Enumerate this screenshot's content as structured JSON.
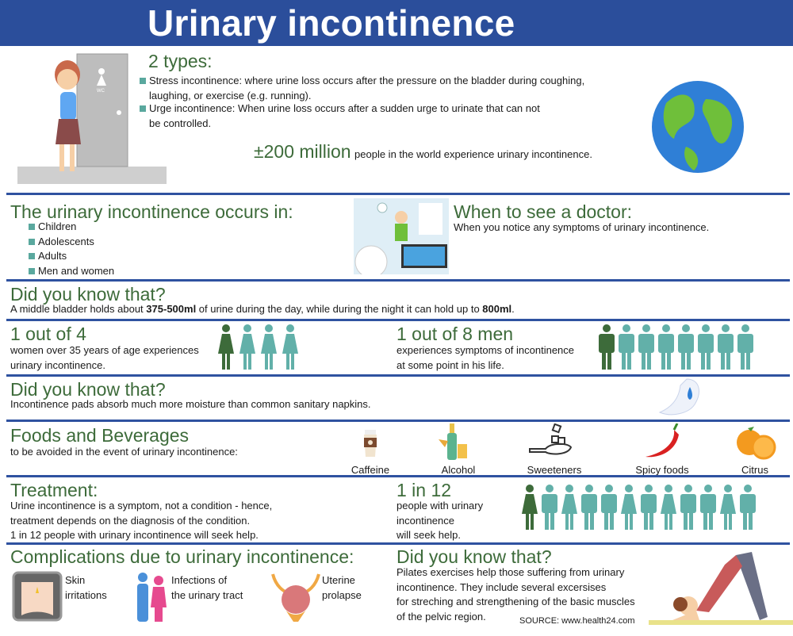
{
  "title": "Urinary incontinence",
  "types": {
    "heading": "2 types:",
    "items": [
      {
        "line1": "Stress incontinence: where urine loss occurs after the pressure on the bladder during coughing,",
        "line2": "laughing, or exercise (e.g. running)."
      },
      {
        "line1": "Urge incontinence: When urine loss occurs after a sudden urge to urinate that can not",
        "line2": "be controlled."
      }
    ],
    "stat_big": "±200 million",
    "stat_text": "people in the world experience urinary incontinence.",
    "door_sign": "WC"
  },
  "occurs": {
    "heading": "The urinary incontinence occurs in:",
    "items": [
      "Children",
      "Adolescents",
      "Adults",
      "Men and women"
    ]
  },
  "doctor": {
    "heading": "When to see a doctor:",
    "text": "When you notice any symptoms of urinary incontinence."
  },
  "dyk1": {
    "heading": "Did you know that?",
    "pre": "A middle bladder holds about ",
    "b1": "375-500ml",
    "mid": " of urine during the day, while during the night it can hold up to ",
    "b2": "800ml",
    "post": "."
  },
  "women_stat": {
    "heading": "1 out of 4",
    "line1": "women over 35 years of age experiences",
    "line2": "urinary incontinence.",
    "figures": [
      "woman-highlight",
      "woman",
      "woman",
      "woman"
    ]
  },
  "men_stat": {
    "heading": "1 out of 8 men",
    "line1": "experiences symptoms of incontinence",
    "line2": "at some point in his life.",
    "figures": [
      "man-highlight",
      "man",
      "man",
      "man",
      "man",
      "man",
      "man",
      "man"
    ]
  },
  "dyk2": {
    "heading": "Did you know that?",
    "text": "Incontinence pads absorb much more moisture than common sanitary napkins."
  },
  "foods": {
    "heading": "Foods and Beverages",
    "subtitle": "to be avoided in the event of urinary incontinence:",
    "items": [
      {
        "label": "Caffeine",
        "icon": "coffee-cup-icon"
      },
      {
        "label": "Alcohol",
        "icon": "bottle-icon"
      },
      {
        "label": "Sweeteners",
        "icon": "sugar-spoon-icon"
      },
      {
        "label": "Spicy foods",
        "icon": "chili-pepper-icon"
      },
      {
        "label": "Citrus",
        "icon": "orange-icon"
      }
    ]
  },
  "treatment": {
    "heading": "Treatment:",
    "lines": [
      "Urine incontinence is a symptom, not a condition - hence,",
      "treatment depends on the diagnosis of the condition.",
      "1 in 12 people with urinary incontinence will seek help."
    ]
  },
  "seek": {
    "heading": "1 in 12",
    "lines": [
      "people with urinary",
      "incontinence",
      "will seek help."
    ],
    "figures": [
      "woman-highlight",
      "man",
      "woman",
      "man",
      "man",
      "woman",
      "man",
      "woman",
      "man",
      "man",
      "woman",
      "man"
    ]
  },
  "complications": {
    "heading": "Complications due to urinary incontinence:",
    "items": [
      {
        "line1": "Skin",
        "line2": "irritations"
      },
      {
        "line1": "Infections of",
        "line2": "the urinary tract"
      },
      {
        "line1": "Uterine",
        "line2": "prolapse"
      }
    ]
  },
  "dyk3": {
    "heading": "Did you know that?",
    "lines": [
      "Pilates exercises help those suffering from urinary",
      "incontinence. They include several excersises",
      "for streching and strengthening of the basic muscles",
      "of the pelvic region."
    ]
  },
  "source": "SOURCE: www.health24.com",
  "colors": {
    "header": "#2b4e9b",
    "heading": "#3d6b3a",
    "figure": "#62b0a9",
    "figure_highlight": "#3d6b3a",
    "divider": "#2f52a0"
  }
}
